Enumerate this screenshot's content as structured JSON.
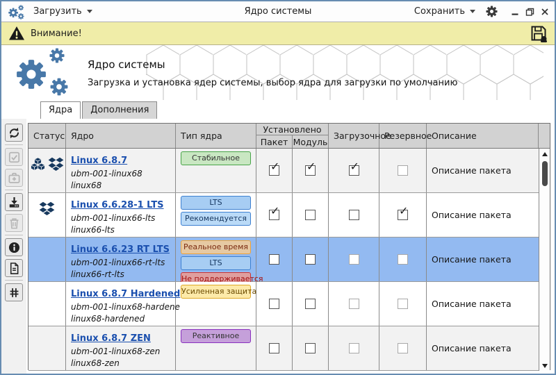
{
  "window": {
    "app_title": "Ядро системы",
    "load_label": "Загрузить",
    "save_label": "Сохранить"
  },
  "warning": {
    "text": "Внимание!"
  },
  "header": {
    "title": "Ядро системы",
    "subtitle": "Загрузка и установка ядер системы, выбор ядра для загрузки по умолчанию"
  },
  "tabs": [
    {
      "label": "Ядра",
      "active": true
    },
    {
      "label": "Дополнения",
      "active": false
    }
  ],
  "sidebar": {
    "buttons": [
      {
        "icon": "refresh",
        "enabled": true
      },
      {
        "icon": "select-check",
        "enabled": false
      },
      {
        "icon": "first-aid",
        "enabled": false
      },
      {
        "icon": "download",
        "enabled": true
      },
      {
        "icon": "trash",
        "enabled": false
      },
      {
        "icon": "info",
        "enabled": true
      },
      {
        "icon": "document",
        "enabled": true
      },
      {
        "icon": "hash",
        "enabled": true
      }
    ],
    "separators_after": [
      0,
      2,
      4,
      6
    ]
  },
  "table": {
    "columns": {
      "status": "Статус",
      "kernel": "Ядро",
      "type": "Тип ядра",
      "installed_group": "Установлено",
      "package": "Пакет",
      "module": "Модуль",
      "bootable": "Загрузочное",
      "reserve": "Резервное",
      "description": "Описание"
    },
    "rows": [
      {
        "status_icons": [
          "cubes",
          "dropbox"
        ],
        "kernel_link": "Linux 6.8.7",
        "package_id": "ubm-001-linux68",
        "kernel_id": "linux68",
        "badges": [
          {
            "label": "Стабильное",
            "bg": "#c9e7c2",
            "border": "#47a447",
            "fg": "#333333"
          }
        ],
        "checkboxes": [
          "checked",
          "checked",
          "checked",
          "disabled"
        ],
        "description": "Описание пакета",
        "selected": false,
        "alt": true
      },
      {
        "status_icons": [
          "dropbox"
        ],
        "kernel_link": "Linux 6.6.28-1 LTS",
        "package_id": "ubm-001-linux66-lts",
        "kernel_id": "linux66-lts",
        "badges": [
          {
            "label": "LTS",
            "bg": "#a7cdf3",
            "border": "#3c7fd0",
            "fg": "#14355e"
          },
          {
            "label": "Рекомендуется",
            "bg": "#badaf7",
            "border": "#3c7fd0",
            "fg": "#14355e"
          }
        ],
        "checkboxes": [
          "checked",
          "unchecked",
          "unchecked",
          "checked"
        ],
        "description": "Описание пакета",
        "selected": false,
        "alt": false
      },
      {
        "status_icons": [],
        "kernel_link": "Linux 6.6.23 RT LTS",
        "package_id": "ubm-001-linux66-rt-lts",
        "kernel_id": "linux66-rt-lts",
        "badges": [
          {
            "label": "Реальное время",
            "bg": "#e6c9a3",
            "border": "#eca33c",
            "fg": "#7a2a10"
          },
          {
            "label": "LTS",
            "bg": "#a7cdf3",
            "border": "#3c7fd0",
            "fg": "#14355e"
          },
          {
            "label": "Не поддерживается",
            "bg": "#df9f9f",
            "border": "#cc3333",
            "fg": "#a51010"
          }
        ],
        "checkboxes": [
          "unchecked",
          "unchecked",
          "disabled",
          "disabled"
        ],
        "description": "Описание пакета",
        "selected": true,
        "alt": false
      },
      {
        "status_icons": [],
        "kernel_link": "Linux 6.8.7 Hardened",
        "package_id": "ubm-001-linux68-hardene",
        "kernel_id": "linux68-hardened",
        "badges": [
          {
            "label": "Усиленная защита",
            "bg": "#fdeaa9",
            "border": "#dfa825",
            "fg": "#6a4a00"
          }
        ],
        "checkboxes": [
          "unchecked",
          "unchecked",
          "disabled",
          "disabled"
        ],
        "description": "Описание пакета",
        "selected": false,
        "alt": false
      },
      {
        "status_icons": [],
        "kernel_link": "Linux 6.8.7 ZEN",
        "package_id": "ubm-001-linux68-zen",
        "kernel_id": "linux68-zen",
        "badges": [
          {
            "label": "Реактивное",
            "bg": "#c5a0da",
            "border": "#8a2fbf",
            "fg": "#333333"
          }
        ],
        "checkboxes": [
          "unchecked",
          "unchecked",
          "disabled",
          "disabled"
        ],
        "description": "Описание пакета",
        "selected": false,
        "alt": true
      }
    ]
  },
  "icons": {
    "app": "gears-icon",
    "settings": "gear-icon",
    "warning": "warning-triangle-icon",
    "save": "save-floppy-icon",
    "dropdown": "chevron-down-icon",
    "status_package": "cubes-icon",
    "status_module": "dropbox-icon"
  },
  "colors": {
    "accent": "#4878a8",
    "selected_row": "#93baf1",
    "alt_row": "#f2f2f2",
    "warning_bg": "#f0eda8",
    "link": "#1a4fae",
    "status_icon": "#17395e"
  }
}
